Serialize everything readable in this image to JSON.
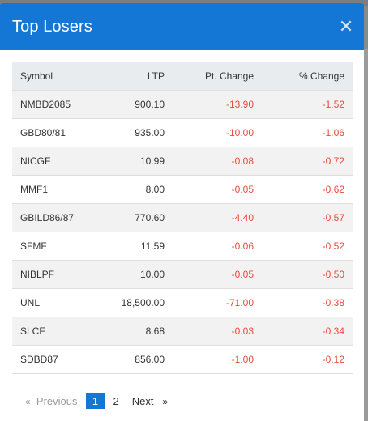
{
  "modal": {
    "title": "Top Losers",
    "close_glyph": "✕"
  },
  "table": {
    "headers": {
      "symbol": "Symbol",
      "ltp": "LTP",
      "pt_change": "Pt. Change",
      "pct_change": "% Change"
    },
    "rows": [
      {
        "symbol": "NMBD2085",
        "ltp": "900.10",
        "pt_change": "-13.90",
        "pct_change": "-1.52"
      },
      {
        "symbol": "GBD80/81",
        "ltp": "935.00",
        "pt_change": "-10.00",
        "pct_change": "-1.06"
      },
      {
        "symbol": "NICGF",
        "ltp": "10.99",
        "pt_change": "-0.08",
        "pct_change": "-0.72"
      },
      {
        "symbol": "MMF1",
        "ltp": "8.00",
        "pt_change": "-0.05",
        "pct_change": "-0.62"
      },
      {
        "symbol": "GBILD86/87",
        "ltp": "770.60",
        "pt_change": "-4.40",
        "pct_change": "-0.57"
      },
      {
        "symbol": "SFMF",
        "ltp": "11.59",
        "pt_change": "-0.06",
        "pct_change": "-0.52"
      },
      {
        "symbol": "NIBLPF",
        "ltp": "10.00",
        "pt_change": "-0.05",
        "pct_change": "-0.50"
      },
      {
        "symbol": "UNL",
        "ltp": "18,500.00",
        "pt_change": "-71.00",
        "pct_change": "-0.38"
      },
      {
        "symbol": "SLCF",
        "ltp": "8.68",
        "pt_change": "-0.03",
        "pct_change": "-0.34"
      },
      {
        "symbol": "SDBD87",
        "ltp": "856.00",
        "pt_change": "-1.00",
        "pct_change": "-0.12"
      }
    ]
  },
  "pagination": {
    "prev_chevron": "«",
    "prev_label": "Previous",
    "pages": [
      "1",
      "2"
    ],
    "current_page": "1",
    "next_label": "Next",
    "next_chevron": "»"
  },
  "colors": {
    "header_bg": "#1477d5",
    "negative": "#e74c3c",
    "active_page": "#1477d5"
  }
}
